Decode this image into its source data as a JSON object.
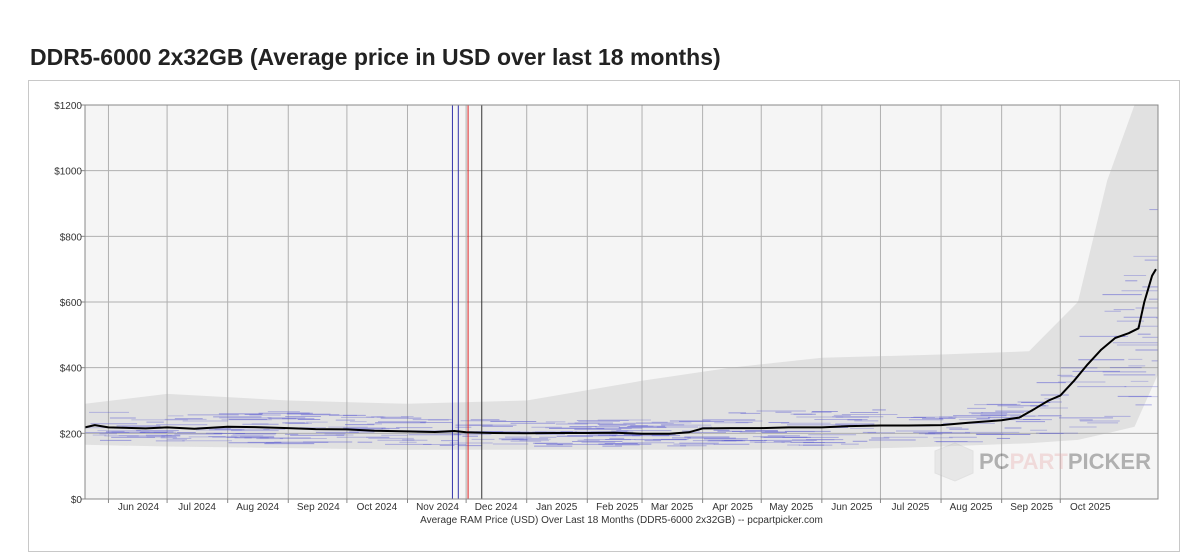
{
  "page": {
    "title": "DDR5-6000 2x32GB (Average price in USD over last 18 months)"
  },
  "watermark": {
    "text_part1": "PC",
    "text_part2": "PART",
    "text_part3": "PICKER",
    "icon": "box-icon"
  },
  "chart_data": {
    "type": "line",
    "title": "DDR5-6000 2x32GB (Average price in USD over last 18 months)",
    "xlabel": "Average RAM Price (USD) Over Last 18 Months (DDR5-6000 2x32GB) -- pcpartpicker.com",
    "ylabel": "",
    "x_type": "date",
    "xlim": [
      "2024-05-20",
      "2025-11-20"
    ],
    "ylim": [
      0,
      1200
    ],
    "grid": true,
    "y_ticks": [
      0,
      200,
      400,
      600,
      800,
      1000,
      1200
    ],
    "y_tick_labels": [
      "$0",
      "$200",
      "$400",
      "$600",
      "$800",
      "$1000",
      "$1200"
    ],
    "x_ticks": [
      {
        "date": "2024-06-01",
        "label": "Jun 2024"
      },
      {
        "date": "2024-07-01",
        "label": "Jul 2024"
      },
      {
        "date": "2024-08-01",
        "label": "Aug 2024"
      },
      {
        "date": "2024-09-01",
        "label": "Sep 2024"
      },
      {
        "date": "2024-10-01",
        "label": "Oct 2024"
      },
      {
        "date": "2024-11-01",
        "label": "Nov 2024"
      },
      {
        "date": "2024-12-01",
        "label": "Dec 2024"
      },
      {
        "date": "2025-01-01",
        "label": "Jan 2025"
      },
      {
        "date": "2025-02-01",
        "label": "Feb 2025"
      },
      {
        "date": "2025-03-01",
        "label": "Mar 2025"
      },
      {
        "date": "2025-04-01",
        "label": "Apr 2025"
      },
      {
        "date": "2025-05-01",
        "label": "May 2025"
      },
      {
        "date": "2025-06-01",
        "label": "Jun 2025"
      },
      {
        "date": "2025-07-01",
        "label": "Jul 2025"
      },
      {
        "date": "2025-08-01",
        "label": "Aug 2025"
      },
      {
        "date": "2025-09-01",
        "label": "Sep 2025"
      },
      {
        "date": "2025-10-01",
        "label": "Oct 2025"
      }
    ],
    "vertical_markers": [
      {
        "date": "2024-11-24",
        "color": "#3333aa"
      },
      {
        "date": "2024-11-27",
        "color": "#3333aa"
      },
      {
        "date": "2024-12-02",
        "color": "#dd2222"
      },
      {
        "date": "2024-12-09",
        "color": "#333333"
      }
    ],
    "colors": {
      "average_line": "#000000",
      "individual_prices": "#5a5ad2",
      "price_range": "#d9d9d9",
      "grid": "#b0b0b0",
      "plot_background": "#f5f5f5"
    },
    "series": [
      {
        "values": [
          {
            "x": "2024-05-20",
            "y": 218
          },
          {
            "x": "2024-05-25",
            "y": 225
          },
          {
            "x": "2024-06-01",
            "y": 218
          },
          {
            "x": "2024-06-20",
            "y": 215
          },
          {
            "x": "2024-07-01",
            "y": 218
          },
          {
            "x": "2024-07-15",
            "y": 214
          },
          {
            "x": "2024-08-01",
            "y": 220
          },
          {
            "x": "2024-08-15",
            "y": 219
          },
          {
            "x": "2024-09-01",
            "y": 216
          },
          {
            "x": "2024-09-15",
            "y": 213
          },
          {
            "x": "2024-10-01",
            "y": 212
          },
          {
            "x": "2024-10-15",
            "y": 208
          },
          {
            "x": "2024-11-01",
            "y": 206
          },
          {
            "x": "2024-11-15",
            "y": 204
          },
          {
            "x": "2024-11-25",
            "y": 207
          },
          {
            "x": "2024-12-01",
            "y": 203
          },
          {
            "x": "2024-12-15",
            "y": 201
          },
          {
            "x": "2025-01-01",
            "y": 200
          },
          {
            "x": "2025-01-15",
            "y": 201
          },
          {
            "x": "2025-02-01",
            "y": 201
          },
          {
            "x": "2025-02-15",
            "y": 202
          },
          {
            "x": "2025-03-01",
            "y": 199
          },
          {
            "x": "2025-03-15",
            "y": 199
          },
          {
            "x": "2025-03-25",
            "y": 203
          },
          {
            "x": "2025-04-01",
            "y": 215
          },
          {
            "x": "2025-04-15",
            "y": 216
          },
          {
            "x": "2025-05-01",
            "y": 216
          },
          {
            "x": "2025-05-15",
            "y": 218
          },
          {
            "x": "2025-06-01",
            "y": 218
          },
          {
            "x": "2025-06-15",
            "y": 222
          },
          {
            "x": "2025-07-01",
            "y": 224
          },
          {
            "x": "2025-07-15",
            "y": 224
          },
          {
            "x": "2025-08-01",
            "y": 225
          },
          {
            "x": "2025-08-15",
            "y": 232
          },
          {
            "x": "2025-09-01",
            "y": 240
          },
          {
            "x": "2025-09-10",
            "y": 248
          },
          {
            "x": "2025-09-18",
            "y": 275
          },
          {
            "x": "2025-09-25",
            "y": 300
          },
          {
            "x": "2025-10-01",
            "y": 315
          },
          {
            "x": "2025-10-08",
            "y": 360
          },
          {
            "x": "2025-10-15",
            "y": 410
          },
          {
            "x": "2025-10-22",
            "y": 455
          },
          {
            "x": "2025-10-29",
            "y": 490
          },
          {
            "x": "2025-11-05",
            "y": 505
          },
          {
            "x": "2025-11-10",
            "y": 520
          },
          {
            "x": "2025-11-13",
            "y": 600
          },
          {
            "x": "2025-11-17",
            "y": 680
          },
          {
            "x": "2025-11-19",
            "y": 700
          }
        ]
      }
    ],
    "price_range_band": [
      {
        "x": "2024-05-20",
        "low": 165,
        "high": 290
      },
      {
        "x": "2024-07-01",
        "low": 160,
        "high": 320
      },
      {
        "x": "2024-09-01",
        "low": 155,
        "high": 300
      },
      {
        "x": "2024-11-01",
        "low": 150,
        "high": 290
      },
      {
        "x": "2025-01-01",
        "low": 150,
        "high": 300
      },
      {
        "x": "2025-03-01",
        "low": 150,
        "high": 360
      },
      {
        "x": "2025-04-15",
        "low": 150,
        "high": 400
      },
      {
        "x": "2025-06-01",
        "low": 150,
        "high": 430
      },
      {
        "x": "2025-08-01",
        "low": 160,
        "high": 440
      },
      {
        "x": "2025-09-15",
        "low": 170,
        "high": 450
      },
      {
        "x": "2025-10-10",
        "low": 180,
        "high": 600
      },
      {
        "x": "2025-10-25",
        "low": 200,
        "high": 970
      },
      {
        "x": "2025-11-08",
        "low": 220,
        "high": 1200
      },
      {
        "x": "2025-11-20",
        "low": 380,
        "high": 1200
      }
    ]
  }
}
